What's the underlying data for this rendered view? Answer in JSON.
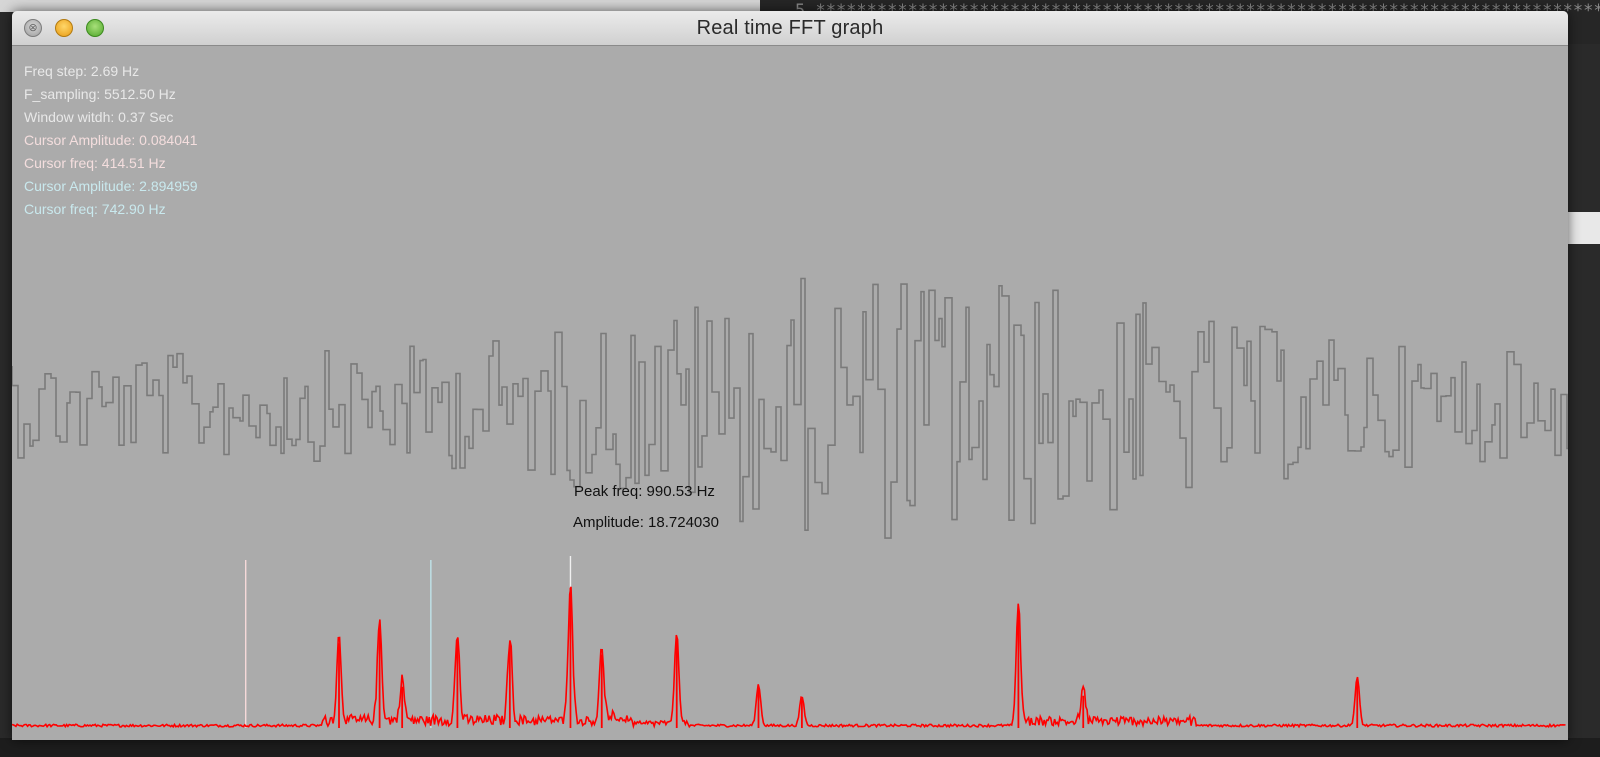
{
  "window": {
    "title": "Real time FFT graph"
  },
  "background": {
    "editor_line": "5  ******************************************************************************",
    "bottom_text": ""
  },
  "info_lines": [
    {
      "key": "freq_step",
      "text": "Freq step: 2.69 Hz",
      "color": "#e8e8e8"
    },
    {
      "key": "f_sampling",
      "text": "F_sampling: 5512.50 Hz",
      "color": "#e8e8e8"
    },
    {
      "key": "window_width",
      "text": "Window witdh: 0.37 Sec",
      "color": "#e8e8e8"
    },
    {
      "key": "cursor1_amplitude",
      "text": "Cursor Amplitude: 0.084041",
      "color": "#f4dede"
    },
    {
      "key": "cursor1_freq",
      "text": "Cursor freq: 414.51 Hz",
      "color": "#f4dede"
    },
    {
      "key": "cursor2_amplitude",
      "text": "Cursor Amplitude: 2.894959",
      "color": "#c9e9ee"
    },
    {
      "key": "cursor2_freq",
      "text": "Cursor freq: 742.90 Hz",
      "color": "#c9e9ee"
    }
  ],
  "peak": {
    "freq_label": "Peak freq: 990.53 Hz",
    "amplitude_label": "Amplitude: 18.724030",
    "freq_hz": 990.53,
    "amplitude": 18.72403
  },
  "cursors": [
    {
      "name": "cursor-1",
      "freq_hz": 414.51,
      "color": "#f6d9d9"
    },
    {
      "name": "cursor-2",
      "freq_hz": 742.9,
      "color": "#bfe4ea"
    },
    {
      "name": "peak-cursor",
      "freq_hz": 990.53,
      "color": "#f0f0f0"
    }
  ],
  "colors": {
    "plot_background": "#ababab",
    "waveform": "#7a7a7a",
    "spectrum": "#ff0000"
  },
  "spectrum_peaks": [
    {
      "freq_hz": 580,
      "amplitude": 11.3
    },
    {
      "freq_hz": 652,
      "amplitude": 13.4
    },
    {
      "freq_hz": 692,
      "amplitude": 5.5
    },
    {
      "freq_hz": 790,
      "amplitude": 11.5
    },
    {
      "freq_hz": 883,
      "amplitude": 11.0
    },
    {
      "freq_hz": 990.53,
      "amplitude": 18.72
    },
    {
      "freq_hz": 1046,
      "amplitude": 9.8
    },
    {
      "freq_hz": 1179,
      "amplitude": 12.0
    },
    {
      "freq_hz": 1324,
      "amplitude": 5.5
    },
    {
      "freq_hz": 1401,
      "amplitude": 3.9
    },
    {
      "freq_hz": 1785,
      "amplitude": 15.9
    },
    {
      "freq_hz": 1900,
      "amplitude": 4.3
    },
    {
      "freq_hz": 2386,
      "amplitude": 6.4
    }
  ]
}
